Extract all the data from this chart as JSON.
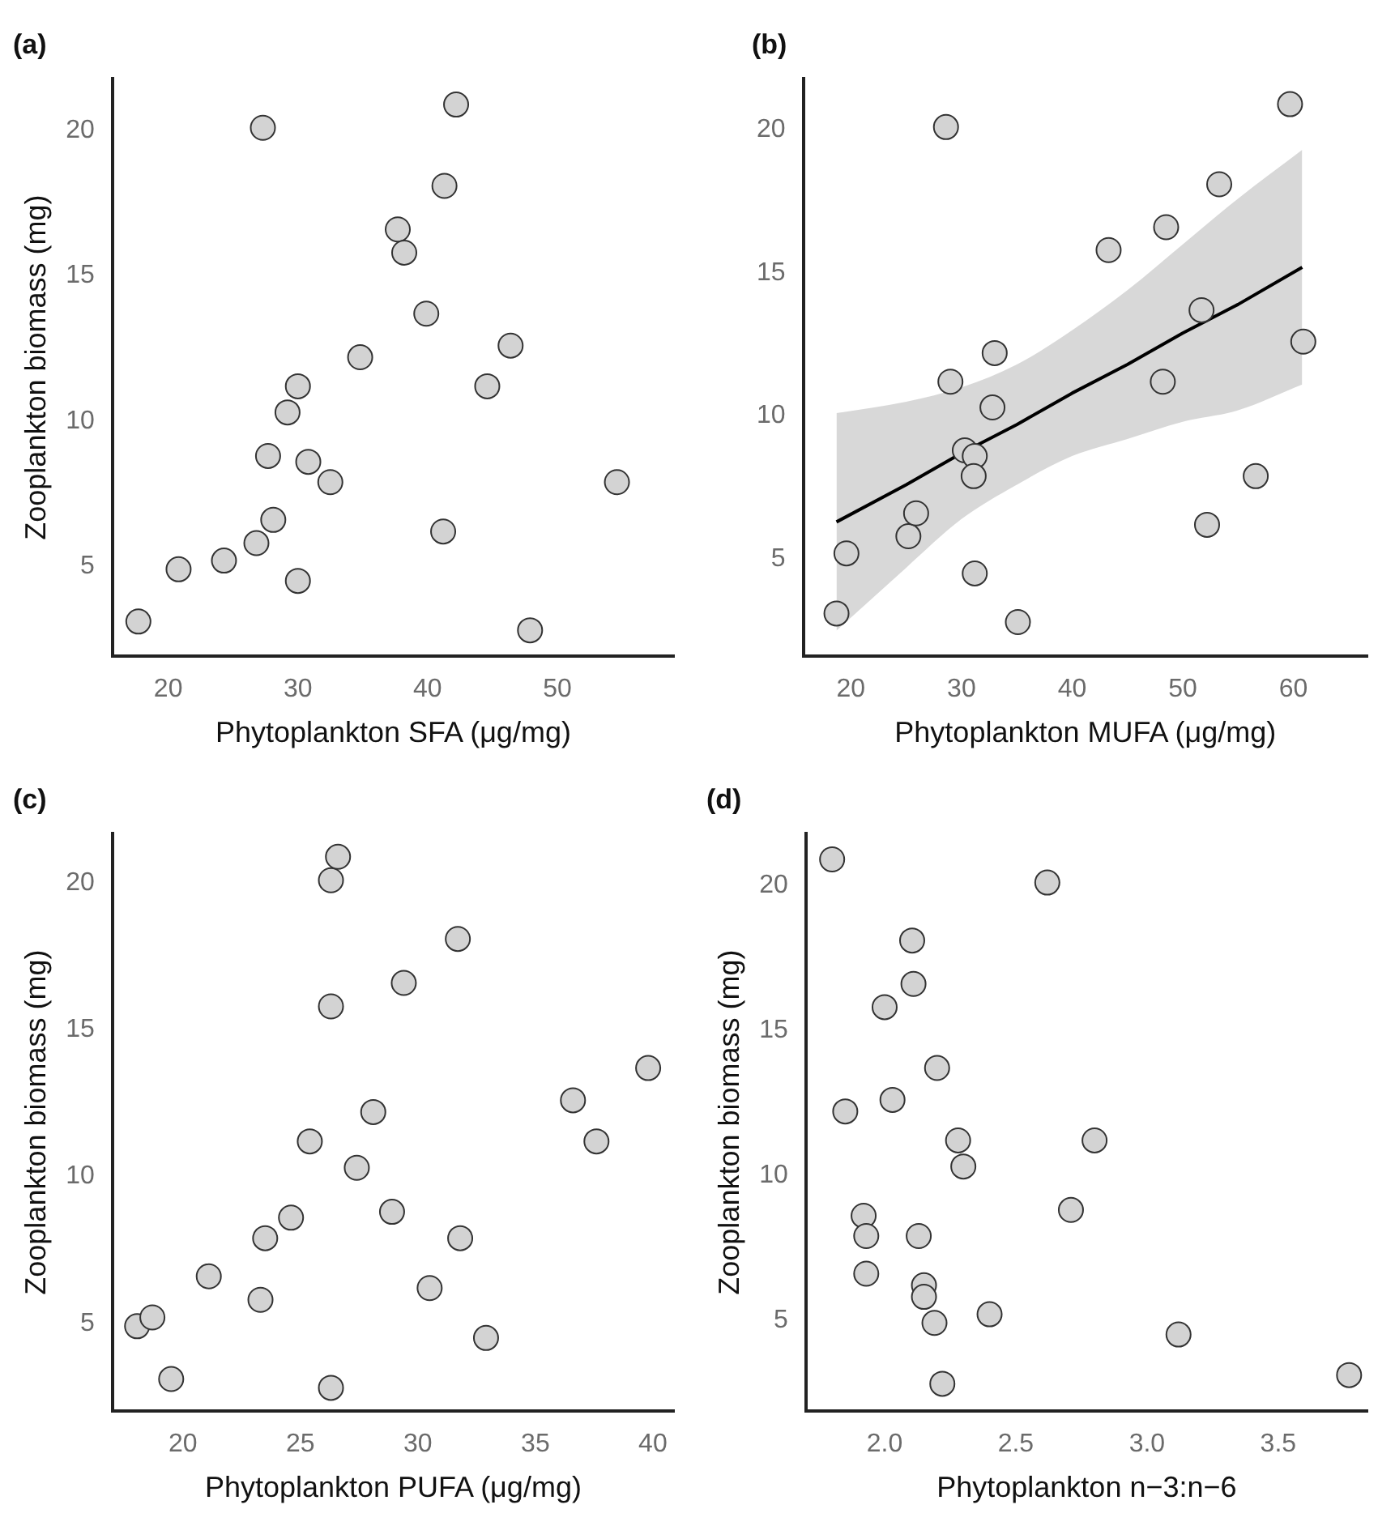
{
  "chart_data": [
    {
      "type": "scatter",
      "title": "(a)",
      "xlabel": "Phytoplankton SFA (μg/mg)",
      "ylabel": "Zooplankton biomass (mg)",
      "marker": "circle",
      "grid": false,
      "legend": false,
      "xlim": [
        15.7,
        59
      ],
      "xticks": [
        20,
        30,
        40,
        50
      ],
      "ylim": [
        1.9,
        21.8
      ],
      "yticks": [
        5,
        10,
        15,
        20
      ],
      "series": [
        {
          "color": "#d3d3d3",
          "x": [
            17.7,
            20.8,
            24.3,
            26.8,
            28.1,
            27.7,
            29.2,
            30.0,
            30.0,
            30.8,
            32.5,
            34.8,
            27.3,
            37.7,
            38.2,
            39.9,
            41.3,
            42.2,
            41.2,
            44.6,
            46.4,
            47.9,
            54.6
          ],
          "values": [
            3.1,
            4.9,
            5.2,
            5.8,
            6.6,
            8.8,
            10.3,
            11.2,
            4.5,
            8.6,
            7.9,
            12.2,
            20.1,
            16.6,
            15.8,
            13.7,
            18.1,
            20.9,
            6.2,
            11.2,
            12.6,
            2.8,
            7.9
          ]
        }
      ]
    },
    {
      "type": "scatter",
      "title": "(b)",
      "xlabel": "Phytoplankton MUFA (μg/mg)",
      "marker": "circle",
      "grid": false,
      "legend": false,
      "xlim": [
        15.7,
        66.7
      ],
      "xticks": [
        20,
        30,
        40,
        50,
        60
      ],
      "ylim": [
        1.6,
        21.8
      ],
      "yticks": [
        5,
        10,
        15,
        20
      ],
      "series": [
        {
          "color": "#d3d3d3",
          "x": [
            18.7,
            19.6,
            25.2,
            25.9,
            28.6,
            29.0,
            30.3,
            31.2,
            31.1,
            31.2,
            32.8,
            33.0,
            35.1,
            43.3,
            48.5,
            48.2,
            51.7,
            52.2,
            53.3,
            56.6,
            59.7,
            60.9
          ],
          "values": [
            3.1,
            5.2,
            5.8,
            6.6,
            20.1,
            11.2,
            8.8,
            8.6,
            7.9,
            4.5,
            10.3,
            12.2,
            2.8,
            15.8,
            16.6,
            11.2,
            13.7,
            6.2,
            18.1,
            7.9,
            20.9,
            12.6
          ]
        },
        {
          "type": "line",
          "color": "#000000",
          "marker": "none",
          "x": [
            18.7,
            25,
            30,
            35,
            40,
            45,
            50,
            55,
            60.8
          ],
          "values": [
            6.3,
            7.6,
            8.7,
            9.7,
            10.8,
            11.8,
            12.9,
            13.9,
            15.2
          ],
          "lower": [
            2.5,
            4.7,
            6.4,
            7.6,
            8.6,
            9.2,
            9.8,
            10.2,
            11.1
          ],
          "upper": [
            10.1,
            10.5,
            11.0,
            11.8,
            13.0,
            14.4,
            16.0,
            17.6,
            19.3
          ]
        }
      ]
    },
    {
      "type": "scatter",
      "title": "(c)",
      "xlabel": "Phytoplankton PUFA (μg/mg)",
      "ylabel": "Zooplankton biomass (mg)",
      "marker": "circle",
      "grid": false,
      "legend": false,
      "xlim": [
        17.0,
        40.9
      ],
      "xticks": [
        20,
        25,
        30,
        35,
        40
      ],
      "ylim": [
        2.0,
        21.7
      ],
      "yticks": [
        5,
        10,
        15,
        20
      ],
      "series": [
        {
          "color": "#d3d3d3",
          "x": [
            18.05,
            18.7,
            19.5,
            21.1,
            23.3,
            23.5,
            24.6,
            25.4,
            26.3,
            26.6,
            26.3,
            26.3,
            27.4,
            28.1,
            28.9,
            29.4,
            30.5,
            31.7,
            31.8,
            32.9,
            36.6,
            37.6,
            39.8
          ],
          "values": [
            4.9,
            5.2,
            3.1,
            6.6,
            5.8,
            7.9,
            8.6,
            11.2,
            20.1,
            20.9,
            15.8,
            2.8,
            10.3,
            12.2,
            8.8,
            16.6,
            6.2,
            18.1,
            7.9,
            4.5,
            12.6,
            11.2,
            13.7
          ]
        }
      ]
    },
    {
      "type": "scatter",
      "title": "(d)",
      "xlabel": "Phytoplankton n−3:n−6",
      "ylabel": "Zooplankton biomass (mg)",
      "marker": "circle",
      "grid": false,
      "legend": false,
      "xlim": [
        1.7,
        3.84
      ],
      "xticks": [
        {
          "value": 2,
          "label": "2.0"
        },
        2.5,
        {
          "value": 3,
          "label": "3.0"
        },
        3.5
      ],
      "ylim": [
        1.85,
        21.8
      ],
      "yticks": [
        5,
        10,
        15,
        20
      ],
      "series": [
        {
          "color": "#d3d3d3",
          "x": [
            1.8,
            2.62,
            2.105,
            2.11,
            2.0,
            2.2,
            2.03,
            1.85,
            2.28,
            2.3,
            2.8,
            2.71,
            1.92,
            1.93,
            2.13,
            1.93,
            2.15,
            2.15,
            2.19,
            2.4,
            2.22,
            3.12,
            3.77
          ],
          "values": [
            20.9,
            20.1,
            18.1,
            16.6,
            15.8,
            13.7,
            12.6,
            12.2,
            11.2,
            10.3,
            11.2,
            8.8,
            8.6,
            7.9,
            7.9,
            6.6,
            6.2,
            5.8,
            4.9,
            5.2,
            2.8,
            4.5,
            3.1
          ]
        }
      ]
    }
  ]
}
